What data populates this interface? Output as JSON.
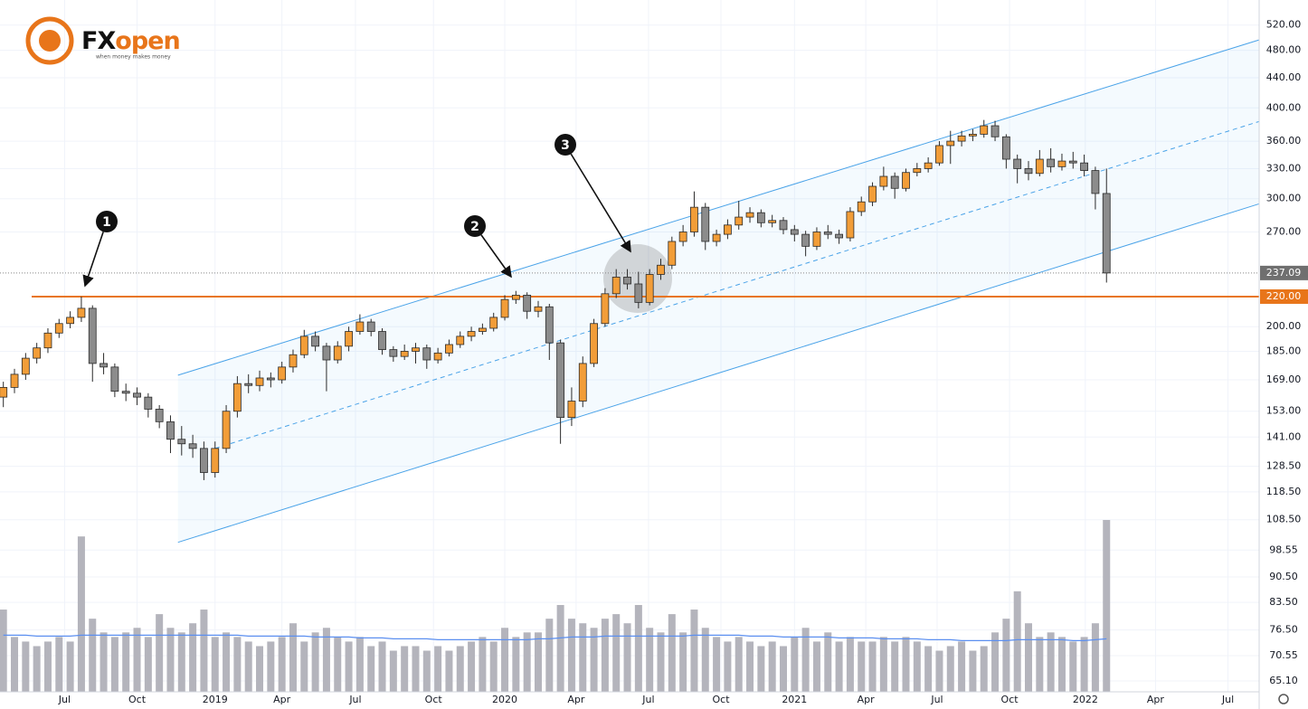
{
  "chart_data": {
    "type": "candlestick",
    "logo": {
      "part1": "FX",
      "part2": "open",
      "tagline": "when money makes money"
    },
    "log_scale": true,
    "grid": true,
    "up_color": "#f29d38",
    "down_color": "#8c8c8c",
    "volume_color": "#b4b4bc",
    "volume_ma_color": "#5b8ff0",
    "xlim": [
      -0.3,
      112.7
    ],
    "ylim": [
      62.9,
      563
    ],
    "xticks": [
      {
        "value": 5.5,
        "label": "Jul"
      },
      {
        "value": 12.0,
        "label": "Oct"
      },
      {
        "value": 19.0,
        "label": "2019"
      },
      {
        "value": 25.0,
        "label": "Apr"
      },
      {
        "value": 31.6,
        "label": "Jul"
      },
      {
        "value": 38.6,
        "label": "Oct"
      },
      {
        "value": 45.0,
        "label": "2020"
      },
      {
        "value": 51.4,
        "label": "Apr"
      },
      {
        "value": 57.9,
        "label": "Jul"
      },
      {
        "value": 64.4,
        "label": "Oct"
      },
      {
        "value": 71.0,
        "label": "2021"
      },
      {
        "value": 77.4,
        "label": "Apr"
      },
      {
        "value": 83.8,
        "label": "Jul"
      },
      {
        "value": 90.3,
        "label": "Oct"
      },
      {
        "value": 97.1,
        "label": "2022"
      },
      {
        "value": 103.4,
        "label": "Apr"
      },
      {
        "value": 109.9,
        "label": "Jul"
      }
    ],
    "yticks": [
      {
        "value": 520,
        "label": "520.00"
      },
      {
        "value": 480,
        "label": "480.00"
      },
      {
        "value": 440,
        "label": "440.00"
      },
      {
        "value": 400,
        "label": "400.00"
      },
      {
        "value": 360,
        "label": "360.00"
      },
      {
        "value": 330,
        "label": "330.00"
      },
      {
        "value": 300,
        "label": "300.00"
      },
      {
        "value": 270,
        "label": "270.00"
      },
      {
        "value": 200,
        "label": "200.00"
      },
      {
        "value": 185,
        "label": "185.00"
      },
      {
        "value": 169,
        "label": "169.00"
      },
      {
        "value": 153,
        "label": "153.00"
      },
      {
        "value": 141,
        "label": "141.00"
      },
      {
        "value": 128.5,
        "label": "128.50"
      },
      {
        "value": 118.5,
        "label": "118.50"
      },
      {
        "value": 108.5,
        "label": "108.50"
      },
      {
        "value": 98.55,
        "label": "98.55"
      },
      {
        "value": 90.5,
        "label": "90.50"
      },
      {
        "value": 83.5,
        "label": "83.50"
      },
      {
        "value": 76.5,
        "label": "76.50"
      },
      {
        "value": 70.55,
        "label": "70.55"
      },
      {
        "value": 65.1,
        "label": "65.10"
      }
    ],
    "hline": {
      "value": 220,
      "label": "220.00",
      "color": "#e8751a"
    },
    "last_price": {
      "value": 237.09,
      "label": "237.09"
    },
    "channel": {
      "x": [
        15.67,
        112.66
      ],
      "upper": [
        171.5,
        496
      ],
      "lower": [
        101,
        295
      ],
      "mid_x": [
        19.0,
        112.66
      ],
      "mid": [
        136,
        383
      ],
      "color": "#4aa3e8"
    },
    "annotations": [
      {
        "label": "1"
      },
      {
        "label": "2"
      },
      {
        "label": "3"
      }
    ],
    "ohlc": [
      [
        160,
        168,
        155,
        165
      ],
      [
        165,
        175,
        162,
        172
      ],
      [
        172,
        184,
        169,
        181
      ],
      [
        181,
        190,
        178,
        187
      ],
      [
        187,
        199,
        184,
        196
      ],
      [
        196,
        205,
        193,
        202
      ],
      [
        202,
        210,
        199,
        206
      ],
      [
        206,
        220,
        203,
        212
      ],
      [
        212,
        214,
        168,
        178
      ],
      [
        178,
        184,
        172,
        176
      ],
      [
        176,
        178,
        160,
        163
      ],
      [
        163,
        167,
        158,
        162
      ],
      [
        162,
        165,
        156,
        160
      ],
      [
        160,
        162,
        150,
        154
      ],
      [
        154,
        156,
        145,
        148
      ],
      [
        148,
        151,
        134,
        140
      ],
      [
        140,
        146,
        133,
        138
      ],
      [
        138,
        142,
        132,
        136
      ],
      [
        136,
        139,
        123,
        126
      ],
      [
        126,
        139,
        124,
        136
      ],
      [
        136,
        156,
        134,
        153
      ],
      [
        153,
        171,
        150,
        167
      ],
      [
        167,
        172,
        162,
        166
      ],
      [
        166,
        174,
        163,
        170
      ],
      [
        170,
        173,
        165,
        169
      ],
      [
        169,
        179,
        167,
        176
      ],
      [
        176,
        186,
        173,
        183
      ],
      [
        183,
        198,
        181,
        194
      ],
      [
        194,
        197,
        185,
        188
      ],
      [
        188,
        190,
        163,
        180
      ],
      [
        180,
        191,
        178,
        188
      ],
      [
        188,
        200,
        185,
        197
      ],
      [
        197,
        208,
        195,
        203
      ],
      [
        203,
        205,
        194,
        197
      ],
      [
        197,
        199,
        183,
        186
      ],
      [
        186,
        188,
        179,
        182
      ],
      [
        182,
        189,
        180,
        185
      ],
      [
        185,
        190,
        178,
        187
      ],
      [
        187,
        189,
        175,
        180
      ],
      [
        180,
        187,
        178,
        184
      ],
      [
        184,
        192,
        182,
        189
      ],
      [
        189,
        197,
        187,
        194
      ],
      [
        194,
        200,
        191,
        197
      ],
      [
        197,
        202,
        195,
        199
      ],
      [
        199,
        209,
        197,
        206
      ],
      [
        206,
        221,
        204,
        218
      ],
      [
        218,
        224,
        215,
        221
      ],
      [
        221,
        223,
        205,
        210
      ],
      [
        210,
        217,
        206,
        213
      ],
      [
        213,
        215,
        180,
        190
      ],
      [
        190,
        192,
        138,
        150
      ],
      [
        150,
        165,
        146,
        158
      ],
      [
        158,
        182,
        155,
        178
      ],
      [
        178,
        205,
        176,
        202
      ],
      [
        202,
        226,
        200,
        222
      ],
      [
        222,
        240,
        219,
        234
      ],
      [
        234,
        240,
        225,
        229
      ],
      [
        229,
        238,
        212,
        216
      ],
      [
        216,
        240,
        214,
        236
      ],
      [
        236,
        248,
        232,
        243
      ],
      [
        243,
        266,
        240,
        262
      ],
      [
        262,
        276,
        258,
        270
      ],
      [
        270,
        307,
        266,
        292
      ],
      [
        292,
        296,
        255,
        262
      ],
      [
        262,
        272,
        258,
        268
      ],
      [
        268,
        281,
        264,
        276
      ],
      [
        276,
        298,
        272,
        283
      ],
      [
        283,
        292,
        278,
        287
      ],
      [
        287,
        290,
        274,
        278
      ],
      [
        278,
        285,
        274,
        280
      ],
      [
        280,
        283,
        268,
        272
      ],
      [
        272,
        276,
        262,
        268
      ],
      [
        268,
        271,
        250,
        258
      ],
      [
        258,
        274,
        255,
        270
      ],
      [
        270,
        276,
        264,
        268
      ],
      [
        268,
        272,
        260,
        265
      ],
      [
        265,
        292,
        262,
        288
      ],
      [
        288,
        302,
        284,
        297
      ],
      [
        297,
        316,
        293,
        312
      ],
      [
        312,
        332,
        308,
        322
      ],
      [
        322,
        326,
        300,
        310
      ],
      [
        310,
        330,
        307,
        326
      ],
      [
        326,
        336,
        322,
        330
      ],
      [
        330,
        342,
        326,
        336
      ],
      [
        336,
        360,
        333,
        355
      ],
      [
        355,
        372,
        335,
        360
      ],
      [
        360,
        372,
        354,
        366
      ],
      [
        366,
        374,
        360,
        368
      ],
      [
        368,
        385,
        364,
        378
      ],
      [
        378,
        384,
        360,
        365
      ],
      [
        365,
        368,
        330,
        340
      ],
      [
        340,
        345,
        315,
        330
      ],
      [
        330,
        338,
        318,
        325
      ],
      [
        325,
        350,
        322,
        340
      ],
      [
        340,
        352,
        326,
        332
      ],
      [
        332,
        346,
        328,
        338
      ],
      [
        338,
        348,
        330,
        336
      ],
      [
        336,
        345,
        322,
        328
      ],
      [
        328,
        332,
        290,
        305
      ],
      [
        305,
        330,
        230,
        237.09
      ]
    ],
    "volume": [
      90,
      60,
      55,
      50,
      55,
      60,
      55,
      170,
      80,
      65,
      60,
      65,
      70,
      60,
      85,
      70,
      65,
      75,
      90,
      60,
      65,
      60,
      55,
      50,
      55,
      60,
      75,
      55,
      65,
      70,
      60,
      55,
      60,
      50,
      55,
      45,
      50,
      50,
      45,
      50,
      45,
      50,
      55,
      60,
      55,
      70,
      60,
      65,
      65,
      80,
      95,
      80,
      75,
      70,
      80,
      85,
      75,
      95,
      70,
      65,
      85,
      65,
      90,
      70,
      60,
      55,
      60,
      55,
      50,
      55,
      50,
      60,
      70,
      55,
      65,
      55,
      60,
      55,
      55,
      60,
      55,
      60,
      55,
      50,
      45,
      50,
      55,
      45,
      50,
      65,
      80,
      110,
      75,
      60,
      65,
      60,
      55,
      60,
      75,
      188
    ],
    "volume_ma": [
      62,
      62,
      62,
      61,
      61,
      61,
      61,
      62,
      62,
      62,
      62,
      62,
      62,
      62,
      62,
      62,
      62,
      62,
      62,
      62,
      62,
      62,
      61,
      61,
      61,
      61,
      61,
      61,
      60,
      60,
      60,
      60,
      59,
      59,
      59,
      58,
      58,
      58,
      58,
      57,
      57,
      57,
      57,
      57,
      57,
      57,
      57,
      57,
      58,
      58,
      59,
      60,
      60,
      60,
      61,
      61,
      61,
      61,
      61,
      61,
      61,
      61,
      62,
      62,
      62,
      62,
      62,
      61,
      61,
      61,
      60,
      60,
      60,
      60,
      60,
      59,
      59,
      59,
      59,
      58,
      58,
      58,
      58,
      57,
      57,
      57,
      56,
      56,
      56,
      56,
      56,
      57,
      57,
      57,
      57,
      57,
      56,
      56,
      57,
      58
    ]
  }
}
